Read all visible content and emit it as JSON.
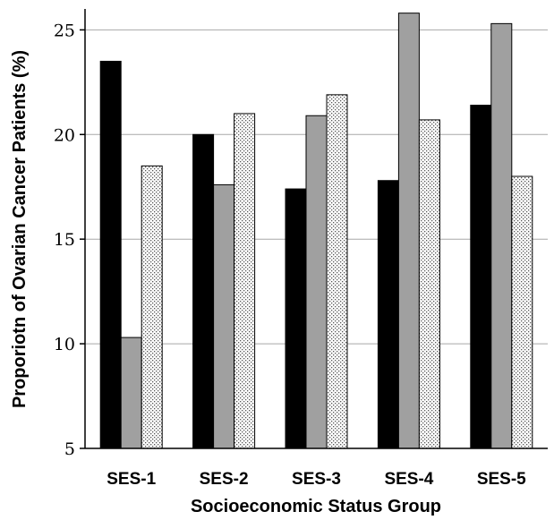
{
  "chart_data": {
    "type": "bar",
    "title": "",
    "xlabel": "Socioeconomic Status Group",
    "ylabel": "Proporiotn of Ovarian Cancer Patients (%)",
    "categories": [
      "SES-1",
      "SES-2",
      "SES-3",
      "SES-4",
      "SES-5"
    ],
    "ylim": [
      5,
      26
    ],
    "yticks": [
      "5",
      "10",
      "15",
      "20",
      "25"
    ],
    "grid": "horizontal",
    "legend": "none",
    "series": [
      {
        "values": [
          23.5,
          20.0,
          17.4,
          17.8,
          21.4
        ],
        "color": "#000000",
        "pattern": "solid"
      },
      {
        "values": [
          10.3,
          17.6,
          20.9,
          25.8,
          25.3
        ],
        "color": "#a0a0a0",
        "pattern": "solid"
      },
      {
        "values": [
          18.5,
          21.0,
          21.9,
          20.7,
          18.0
        ],
        "color": "#ffffff",
        "pattern": "dotted"
      }
    ]
  }
}
